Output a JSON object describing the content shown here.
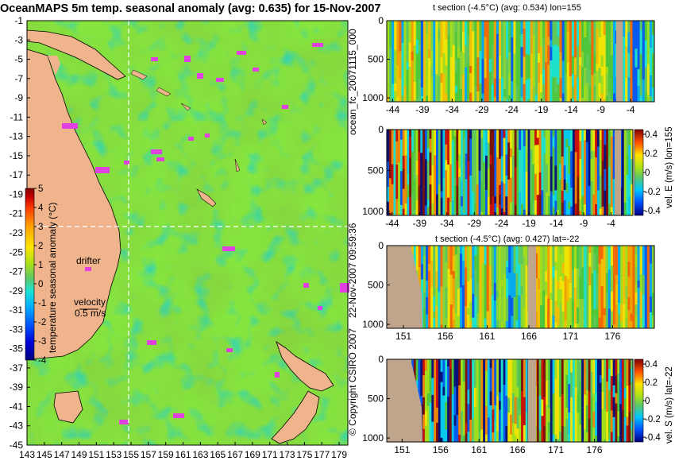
{
  "colors": {
    "ocean_base": "#4fc63d",
    "land": "#f0b48c",
    "section_land": "#bea58c",
    "drifter": "#e040e0",
    "scale": [
      "#00007f",
      "#0000d4",
      "#0050ff",
      "#00a6ff",
      "#19e3d8",
      "#61c861",
      "#a8e01a",
      "#ffe600",
      "#ffa000",
      "#ff4000",
      "#c80000",
      "#7f0000"
    ]
  },
  "main": {
    "title": "OceanMAPS 5m temp. seasonal anomaly (avg: 0.635) for 15-Nov-2007",
    "lat_ticks": [
      "-1",
      "-3",
      "-5",
      "-7",
      "-9",
      "-11",
      "-13",
      "-15",
      "-17",
      "-19",
      "-21",
      "-23",
      "-25",
      "-27",
      "-29",
      "-31",
      "-33",
      "-35",
      "-37",
      "-39",
      "-41",
      "-43",
      "-45"
    ],
    "lon_ticks": [
      "143",
      "145",
      "147",
      "149",
      "151",
      "153",
      "155",
      "157",
      "159",
      "161",
      "163",
      "165",
      "167",
      "169",
      "171",
      "173",
      "175",
      "177",
      "179"
    ],
    "colorbar_ticks": [
      "5",
      "4",
      "3",
      "2",
      "1",
      "0",
      "-1",
      "-2",
      "-3",
      "-4"
    ],
    "colorbar_label": "temperature seasonal anomaly (°C)",
    "drifter_label": "drifter",
    "velocity_label": "velocity",
    "velocity_value": "0.5 m/s"
  },
  "side_labels": {
    "a": "ocean_fc_20071115_000",
    "b": "22-Nov-2007 09:59:36",
    "c": "© Copyright CSIRO 2007"
  },
  "panels": {
    "p1": {
      "title": "t section (-4.5°C) (avg: 0.534) lon=155",
      "y_ticks": [
        "0",
        "500",
        "1000"
      ],
      "x_ticks": [
        "-44",
        "-39",
        "-34",
        "-29",
        "-24",
        "-19",
        "-14",
        "-9",
        "-4"
      ]
    },
    "p2": {
      "y_ticks": [
        "0",
        "500",
        "1000"
      ],
      "x_ticks": [
        "-44",
        "-39",
        "-34",
        "-29",
        "-24",
        "-19",
        "-14",
        "-9",
        "-4"
      ],
      "cb_ticks": [
        "0.4",
        "0.2",
        "0",
        "-0.2",
        "-0.4"
      ],
      "cb_label": "vel. E (m/s) lon=155"
    },
    "p3": {
      "title": "t section (-4.5°C) (avg: 0.427) lat=-22",
      "y_ticks": [
        "0",
        "500",
        "1000"
      ],
      "x_ticks": [
        "151",
        "156",
        "161",
        "166",
        "171",
        "176"
      ]
    },
    "p4": {
      "y_ticks": [
        "0",
        "500",
        "1000"
      ],
      "x_ticks": [
        "151",
        "156",
        "161",
        "166",
        "171",
        "176"
      ],
      "cb_ticks": [
        "0.4",
        "0.2",
        "0",
        "-0.2",
        "-0.4"
      ],
      "cb_label": "vel. S (m/s) lat=-22"
    }
  },
  "chart_data": [
    {
      "type": "heatmap",
      "title": "OceanMAPS 5m temp. seasonal anomaly (avg: 0.635) for 15-Nov-2007",
      "xlabel": "",
      "ylabel": "",
      "xlim": [
        143,
        180
      ],
      "ylim": [
        -45,
        -1
      ],
      "x_ticks": [
        143,
        145,
        147,
        149,
        151,
        153,
        155,
        157,
        159,
        161,
        163,
        165,
        167,
        169,
        171,
        173,
        175,
        177,
        179
      ],
      "y_ticks": [
        -1,
        -3,
        -5,
        -7,
        -9,
        -11,
        -13,
        -15,
        -17,
        -19,
        -21,
        -23,
        -25,
        -27,
        -29,
        -31,
        -33,
        -35,
        -37,
        -39,
        -41,
        -43,
        -45
      ],
      "colorbar": {
        "label": "temperature seasonal anomaly (°C)",
        "range": [
          -4,
          5
        ]
      },
      "section_lines": {
        "lon": 155,
        "lat": -22
      }
    },
    {
      "type": "heatmap",
      "title": "t section (-4.5°C) (avg: 0.534) lon=155",
      "xlim": [
        -45,
        0
      ],
      "ylim": [
        1050,
        0
      ],
      "x_ticks": [
        -44,
        -39,
        -34,
        -29,
        -24,
        -19,
        -14,
        -9,
        -4
      ],
      "y_ticks": [
        0,
        500,
        1000
      ]
    },
    {
      "type": "heatmap",
      "title": "",
      "xlim": [
        -45,
        0
      ],
      "ylim": [
        1050,
        0
      ],
      "x_ticks": [
        -44,
        -39,
        -34,
        -29,
        -24,
        -19,
        -14,
        -9,
        -4
      ],
      "y_ticks": [
        0,
        500,
        1000
      ],
      "colorbar": {
        "label": "vel. E (m/s) lon=155",
        "range": [
          -0.4,
          0.4
        ]
      }
    },
    {
      "type": "heatmap",
      "title": "t section (-4.5°C) (avg: 0.427) lat=-22",
      "xlim": [
        149,
        181
      ],
      "ylim": [
        1050,
        0
      ],
      "x_ticks": [
        151,
        156,
        161,
        166,
        171,
        176
      ],
      "y_ticks": [
        0,
        500,
        1000
      ]
    },
    {
      "type": "heatmap",
      "title": "",
      "xlim": [
        149,
        181
      ],
      "ylim": [
        1050,
        0
      ],
      "x_ticks": [
        151,
        156,
        161,
        166,
        171,
        176
      ],
      "y_ticks": [
        0,
        500,
        1000
      ],
      "colorbar": {
        "label": "vel. S (m/s) lat=-22",
        "range": [
          -0.4,
          0.4
        ]
      }
    }
  ]
}
